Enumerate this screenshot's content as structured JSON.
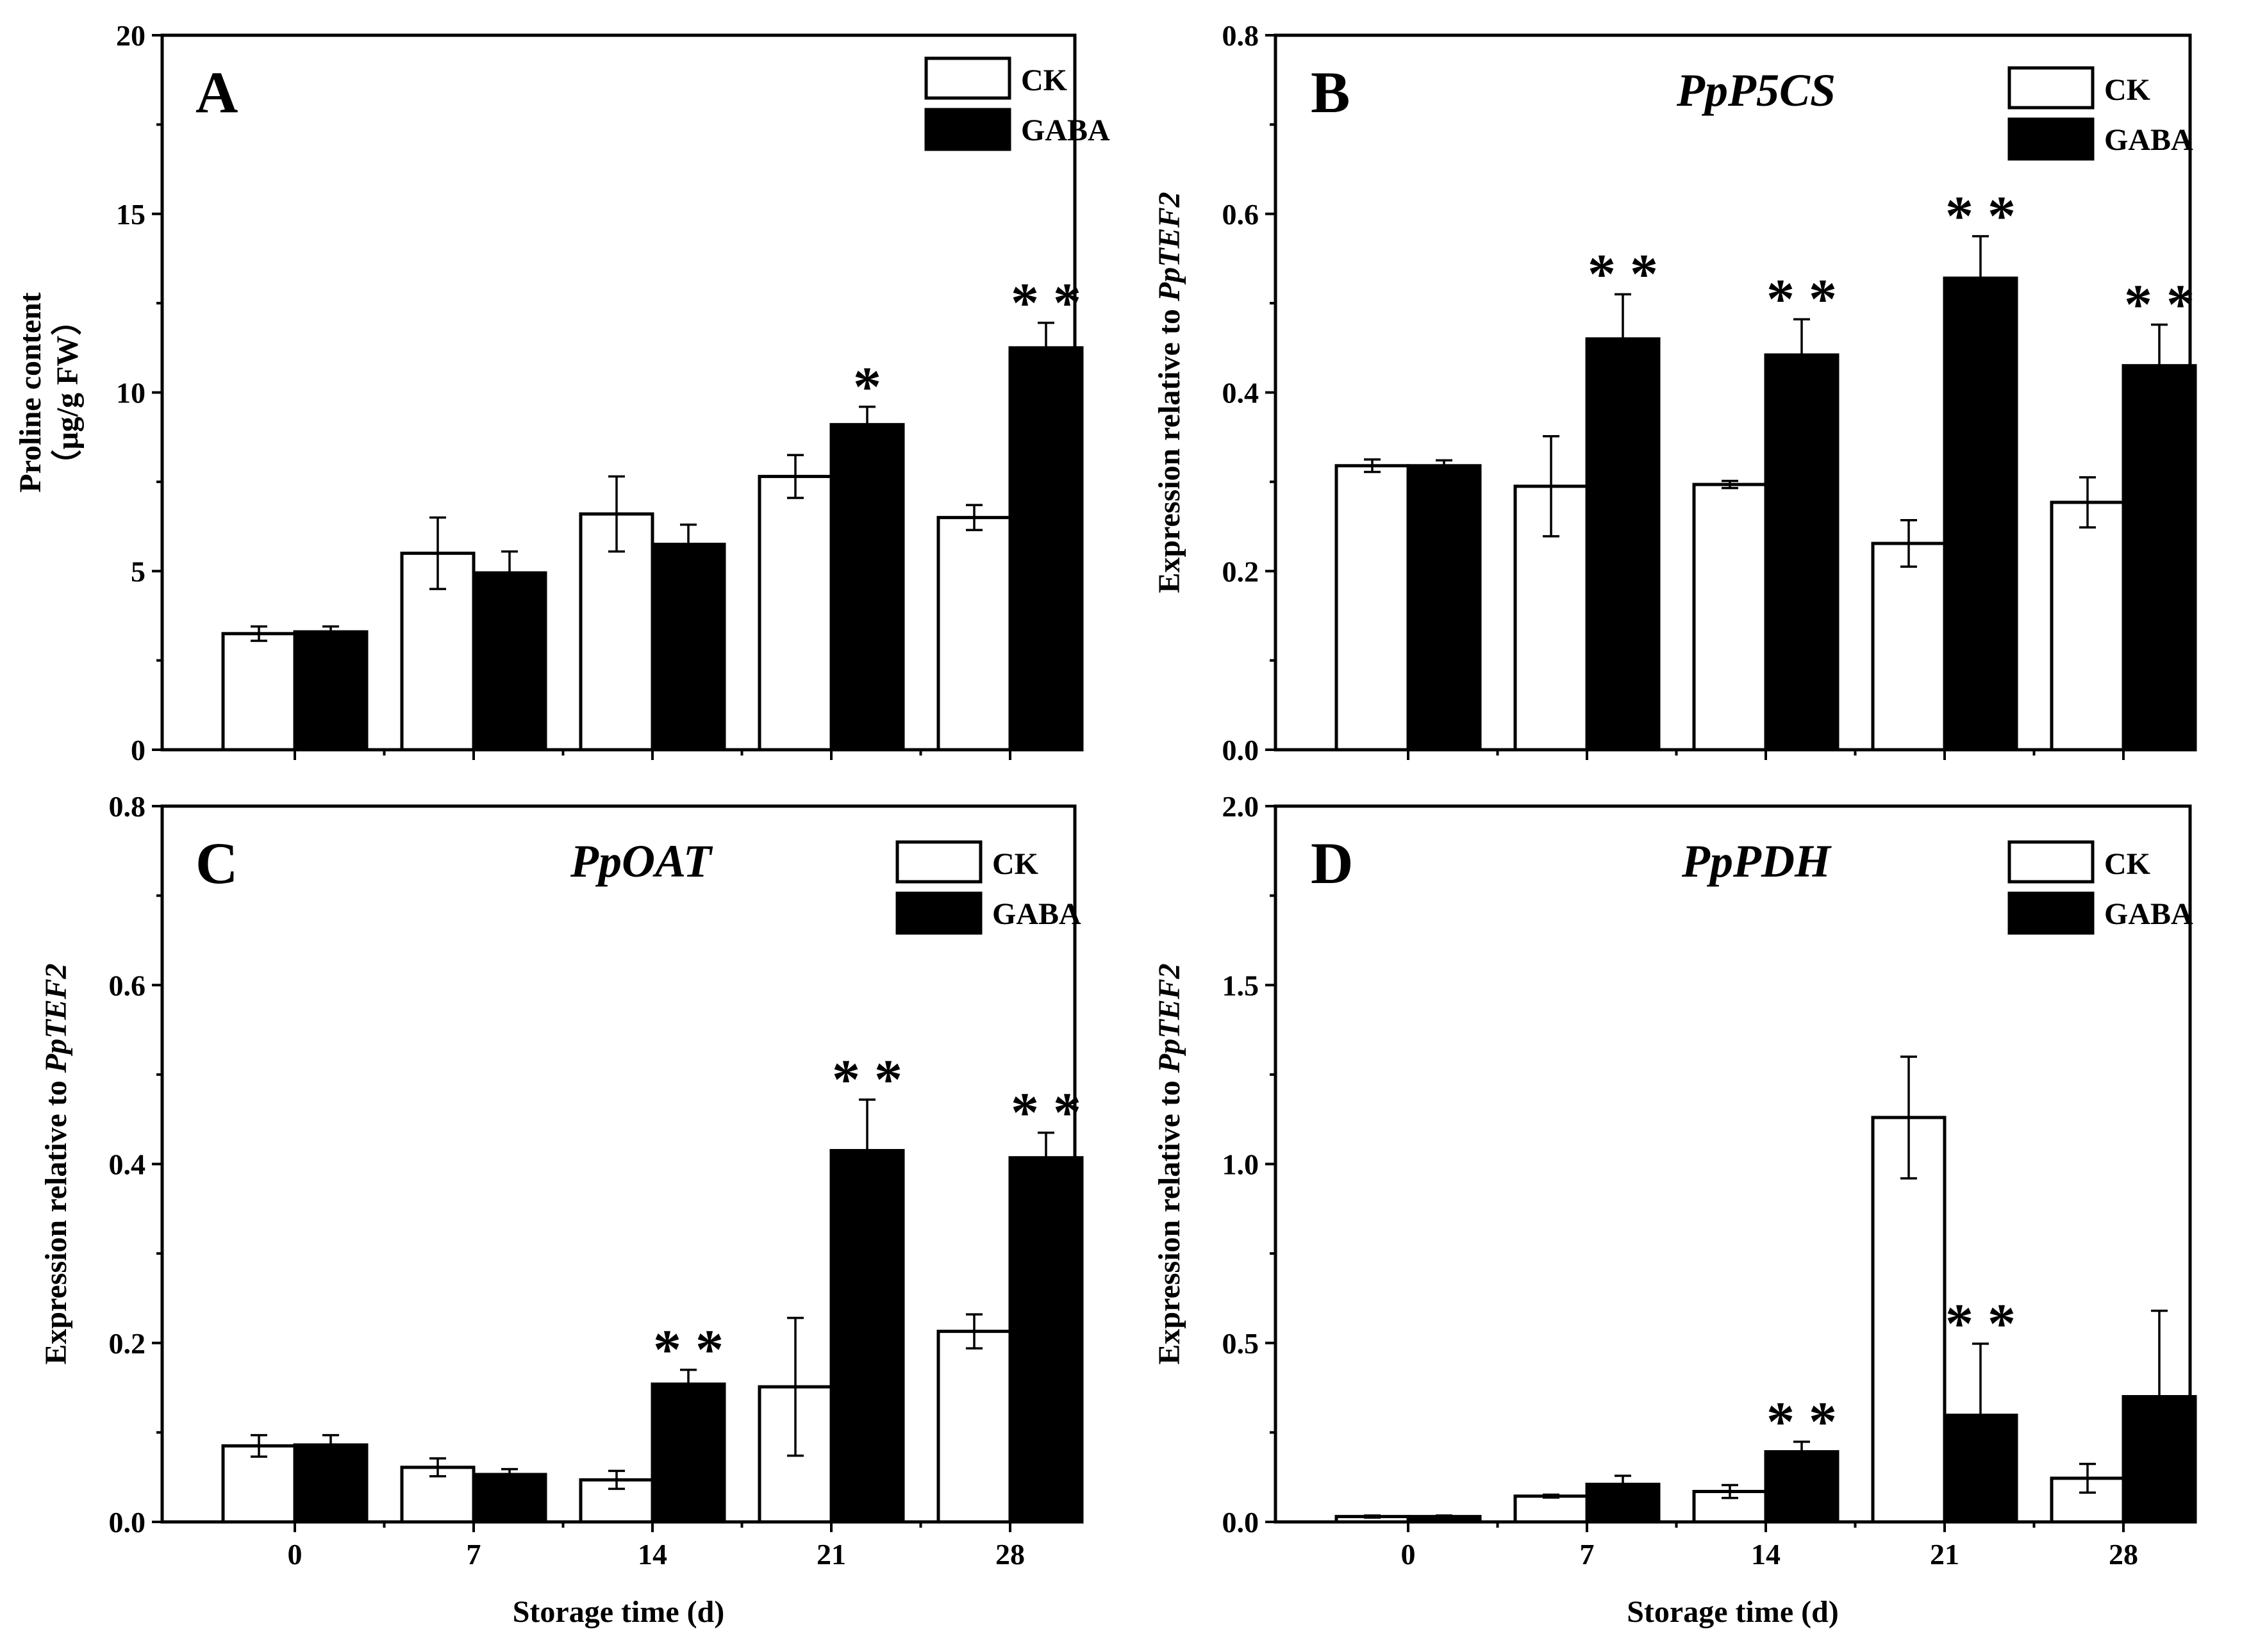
{
  "legend": {
    "ck": "CK",
    "gaba": "GABA"
  },
  "x_axis_title": "Storage time (d)",
  "chart_data": [
    {
      "id": "A",
      "type": "bar",
      "panel_label": "A",
      "gene": "",
      "ylabel_line1": "Proline content",
      "ylabel_line2": "（μg/g FW）",
      "ylim": [
        0,
        20
      ],
      "yticks": [
        0,
        5,
        10,
        15,
        20
      ],
      "ytick_labels": [
        "0",
        "5",
        "10",
        "15",
        "20"
      ],
      "categories": [
        "0",
        "7",
        "14",
        "21",
        "28"
      ],
      "show_xtick_labels": false,
      "show_xlabel": false,
      "series": [
        {
          "name": "CK",
          "values": [
            3.25,
            5.5,
            6.6,
            7.65,
            6.5
          ],
          "errors": [
            0.2,
            1.0,
            1.05,
            0.6,
            0.35
          ]
        },
        {
          "name": "GABA",
          "values": [
            3.3,
            4.95,
            5.75,
            9.1,
            11.25
          ],
          "errors": [
            0.15,
            0.6,
            0.55,
            0.5,
            0.7
          ]
        }
      ],
      "significance": [
        {
          "category": "21",
          "series": "GABA",
          "mark": "*"
        },
        {
          "category": "28",
          "series": "GABA",
          "mark": "* *"
        }
      ]
    },
    {
      "id": "B",
      "type": "bar",
      "panel_label": "B",
      "gene": "PpP5CS",
      "ylabel_line1": "Expression relative to ",
      "ylabel_italic": "PpTEF2",
      "ylim": [
        0,
        0.8
      ],
      "yticks": [
        0,
        0.2,
        0.4,
        0.6,
        0.8
      ],
      "ytick_labels": [
        "0.0",
        "0.2",
        "0.4",
        "0.6",
        "0.8"
      ],
      "categories": [
        "0",
        "7",
        "14",
        "21",
        "28"
      ],
      "show_xtick_labels": false,
      "show_xlabel": false,
      "series": [
        {
          "name": "CK",
          "values": [
            0.318,
            0.295,
            0.297,
            0.231,
            0.277
          ],
          "errors": [
            0.007,
            0.056,
            0.004,
            0.026,
            0.028
          ]
        },
        {
          "name": "GABA",
          "values": [
            0.318,
            0.46,
            0.442,
            0.528,
            0.43
          ],
          "errors": [
            0.006,
            0.05,
            0.04,
            0.047,
            0.046
          ]
        }
      ],
      "significance": [
        {
          "category": "7",
          "series": "GABA",
          "mark": "* *"
        },
        {
          "category": "14",
          "series": "GABA",
          "mark": "* *"
        },
        {
          "category": "21",
          "series": "GABA",
          "mark": "* *"
        },
        {
          "category": "28",
          "series": "GABA",
          "mark": "* *"
        }
      ]
    },
    {
      "id": "C",
      "type": "bar",
      "panel_label": "C",
      "gene": "PpOAT",
      "ylabel_line1": "Expression relative to ",
      "ylabel_italic": "PpTEF2",
      "ylim": [
        0,
        0.8
      ],
      "yticks": [
        0,
        0.2,
        0.4,
        0.6,
        0.8
      ],
      "ytick_labels": [
        "0.0",
        "0.2",
        "0.4",
        "0.6",
        "0.8"
      ],
      "categories": [
        "0",
        "7",
        "14",
        "21",
        "28"
      ],
      "show_xtick_labels": true,
      "show_xlabel": true,
      "series": [
        {
          "name": "CK",
          "values": [
            0.085,
            0.061,
            0.047,
            0.151,
            0.213
          ],
          "errors": [
            0.012,
            0.01,
            0.01,
            0.077,
            0.019
          ]
        },
        {
          "name": "GABA",
          "values": [
            0.086,
            0.053,
            0.154,
            0.415,
            0.407
          ],
          "errors": [
            0.011,
            0.006,
            0.016,
            0.057,
            0.028
          ]
        }
      ],
      "significance": [
        {
          "category": "14",
          "series": "GABA",
          "mark": "* *"
        },
        {
          "category": "21",
          "series": "GABA",
          "mark": "* *"
        },
        {
          "category": "28",
          "series": "GABA",
          "mark": "* *"
        }
      ]
    },
    {
      "id": "D",
      "type": "bar",
      "panel_label": "D",
      "gene": "PpPDH",
      "ylabel_line1": "Expression relative to ",
      "ylabel_italic": "PpTEF2",
      "ylim": [
        0,
        2.0
      ],
      "yticks": [
        0,
        0.5,
        1.0,
        1.5,
        2.0
      ],
      "ytick_labels": [
        "0.0",
        "0.5",
        "1.0",
        "1.5",
        "2.0"
      ],
      "categories": [
        "0",
        "7",
        "14",
        "21",
        "28"
      ],
      "show_xtick_labels": true,
      "show_xlabel": true,
      "series": [
        {
          "name": "CK",
          "values": [
            0.015,
            0.072,
            0.085,
            1.13,
            0.122
          ],
          "errors": [
            0.003,
            0.004,
            0.018,
            0.17,
            0.04
          ]
        },
        {
          "name": "GABA",
          "values": [
            0.015,
            0.105,
            0.196,
            0.298,
            0.35
          ],
          "errors": [
            0.003,
            0.024,
            0.028,
            0.2,
            0.24
          ]
        }
      ],
      "significance": [
        {
          "category": "14",
          "series": "GABA",
          "mark": "* *"
        },
        {
          "category": "21",
          "series": "GABA",
          "mark": "* *"
        }
      ]
    }
  ]
}
